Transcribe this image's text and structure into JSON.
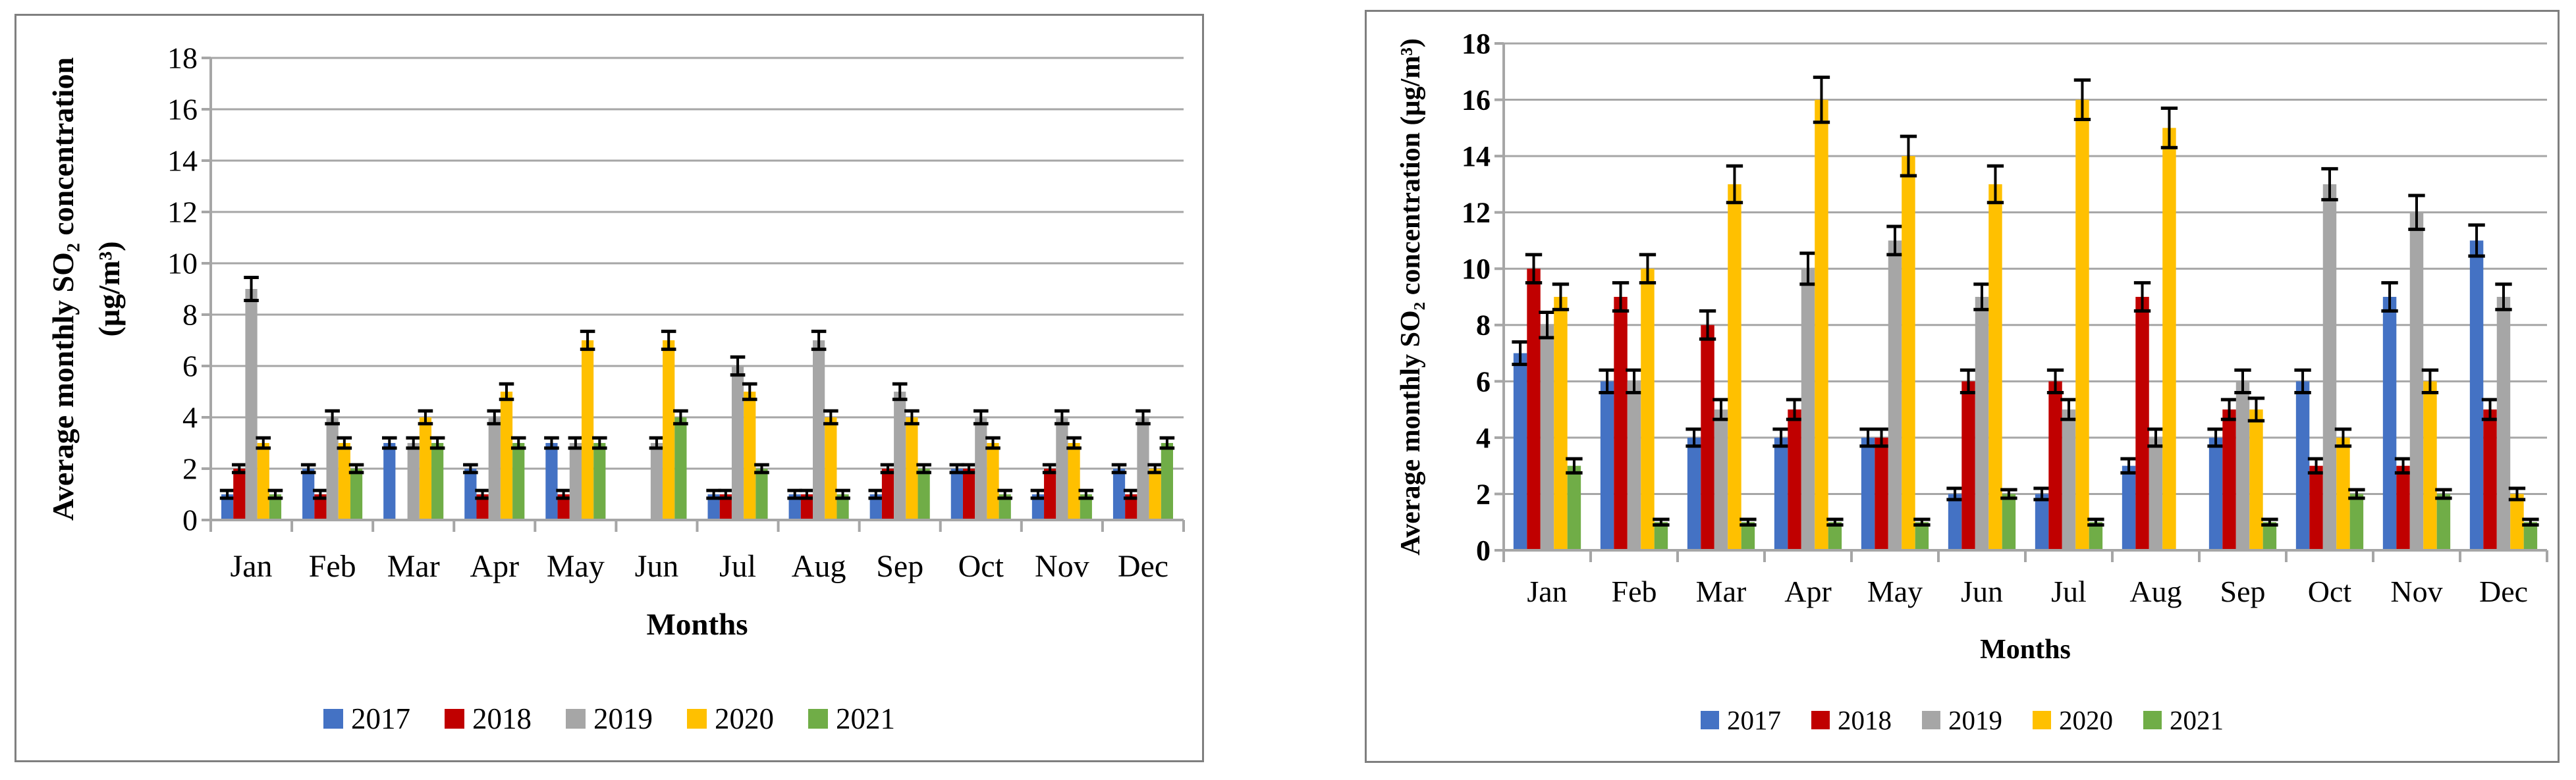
{
  "chart_data": [
    {
      "type": "bar",
      "title": "",
      "ylabel": "Average monthly SO₂ concentration (µg/m³)",
      "ylabel_lines": [
        "Average monthly SO₂ concentration",
        "(µg/m³)"
      ],
      "xlabel": "Months",
      "categories": [
        "Jan",
        "Feb",
        "Mar",
        "Apr",
        "May",
        "Jun",
        "Jul",
        "Aug",
        "Sep",
        "Oct",
        "Nov",
        "Dec"
      ],
      "ylim": [
        0,
        18
      ],
      "ytick_step": 2,
      "grid": true,
      "error_bars": true,
      "legend_position": "bottom",
      "series": [
        {
          "name": "2017",
          "color": "#4472C4",
          "values": [
            1,
            2,
            3,
            2,
            3,
            0,
            1,
            1,
            1,
            2,
            1,
            2
          ],
          "errors": [
            0.15,
            0.15,
            0.2,
            0.15,
            0.2,
            0,
            0.15,
            0.15,
            0.15,
            0.15,
            0.15,
            0.15
          ]
        },
        {
          "name": "2018",
          "color": "#C00000",
          "values": [
            2,
            1,
            0,
            1,
            1,
            0,
            1,
            1,
            2,
            2,
            2,
            1
          ],
          "errors": [
            0.15,
            0.15,
            0,
            0.15,
            0.15,
            0,
            0.15,
            0.15,
            0.15,
            0.15,
            0.15,
            0.15
          ]
        },
        {
          "name": "2019",
          "color": "#A6A6A6",
          "values": [
            9,
            4,
            3,
            4,
            3,
            3,
            6,
            7,
            5,
            4,
            4,
            4
          ],
          "errors": [
            0.45,
            0.25,
            0.2,
            0.25,
            0.2,
            0.2,
            0.35,
            0.35,
            0.3,
            0.25,
            0.25,
            0.25
          ]
        },
        {
          "name": "2020",
          "color": "#FFC000",
          "values": [
            3,
            3,
            4,
            5,
            7,
            7,
            5,
            4,
            4,
            3,
            3,
            2
          ],
          "errors": [
            0.2,
            0.2,
            0.25,
            0.3,
            0.35,
            0.35,
            0.3,
            0.25,
            0.25,
            0.2,
            0.2,
            0.15
          ]
        },
        {
          "name": "2021",
          "color": "#70AD47",
          "values": [
            1,
            2,
            3,
            3,
            3,
            4,
            2,
            1,
            2,
            1,
            1,
            3
          ],
          "errors": [
            0.15,
            0.15,
            0.2,
            0.2,
            0.2,
            0.25,
            0.15,
            0.15,
            0.15,
            0.15,
            0.15,
            0.2
          ]
        }
      ]
    },
    {
      "type": "bar",
      "title": "",
      "ylabel": "Average monthly SO₂ concentration (µg/m³)",
      "ylabel_lines": [
        "Average monthly SO₂ concentration (µg/m³)"
      ],
      "xlabel": "Months",
      "categories": [
        "Jan",
        "Feb",
        "Mar",
        "Apr",
        "May",
        "Jun",
        "Jul",
        "Aug",
        "Sep",
        "Oct",
        "Nov",
        "Dec"
      ],
      "ylim": [
        0,
        18
      ],
      "ytick_step": 2,
      "grid": true,
      "error_bars": true,
      "legend_position": "bottom",
      "series": [
        {
          "name": "2017",
          "color": "#4472C4",
          "values": [
            7,
            6,
            4,
            4,
            4,
            2,
            2,
            3,
            4,
            6,
            9,
            11
          ],
          "errors": [
            0.4,
            0.4,
            0.3,
            0.3,
            0.3,
            0.2,
            0.2,
            0.25,
            0.3,
            0.4,
            0.5,
            0.55
          ]
        },
        {
          "name": "2018",
          "color": "#C00000",
          "values": [
            10,
            9,
            8,
            5,
            4,
            6,
            6,
            9,
            5,
            3,
            3,
            5
          ],
          "errors": [
            0.5,
            0.5,
            0.5,
            0.35,
            0.3,
            0.4,
            0.4,
            0.5,
            0.35,
            0.25,
            0.25,
            0.35
          ]
        },
        {
          "name": "2019",
          "color": "#A6A6A6",
          "values": [
            8,
            6,
            5,
            10,
            11,
            9,
            5,
            4,
            6,
            13,
            12,
            9
          ],
          "errors": [
            0.45,
            0.4,
            0.35,
            0.55,
            0.5,
            0.45,
            0.35,
            0.3,
            0.4,
            0.55,
            0.6,
            0.45
          ]
        },
        {
          "name": "2020",
          "color": "#FFC000",
          "values": [
            9,
            10,
            13,
            16,
            14,
            13,
            16,
            15,
            5,
            4,
            6,
            2
          ],
          "errors": [
            0.45,
            0.5,
            0.65,
            0.8,
            0.7,
            0.65,
            0.7,
            0.7,
            0.4,
            0.3,
            0.4,
            0.2
          ]
        },
        {
          "name": "2021",
          "color": "#70AD47",
          "values": [
            3,
            1,
            1,
            1,
            1,
            2,
            1,
            0,
            1,
            2,
            2,
            1
          ],
          "errors": [
            0.25,
            0.1,
            0.1,
            0.1,
            0.1,
            0.15,
            0.1,
            0,
            0.1,
            0.15,
            0.15,
            0.1
          ]
        }
      ]
    }
  ]
}
